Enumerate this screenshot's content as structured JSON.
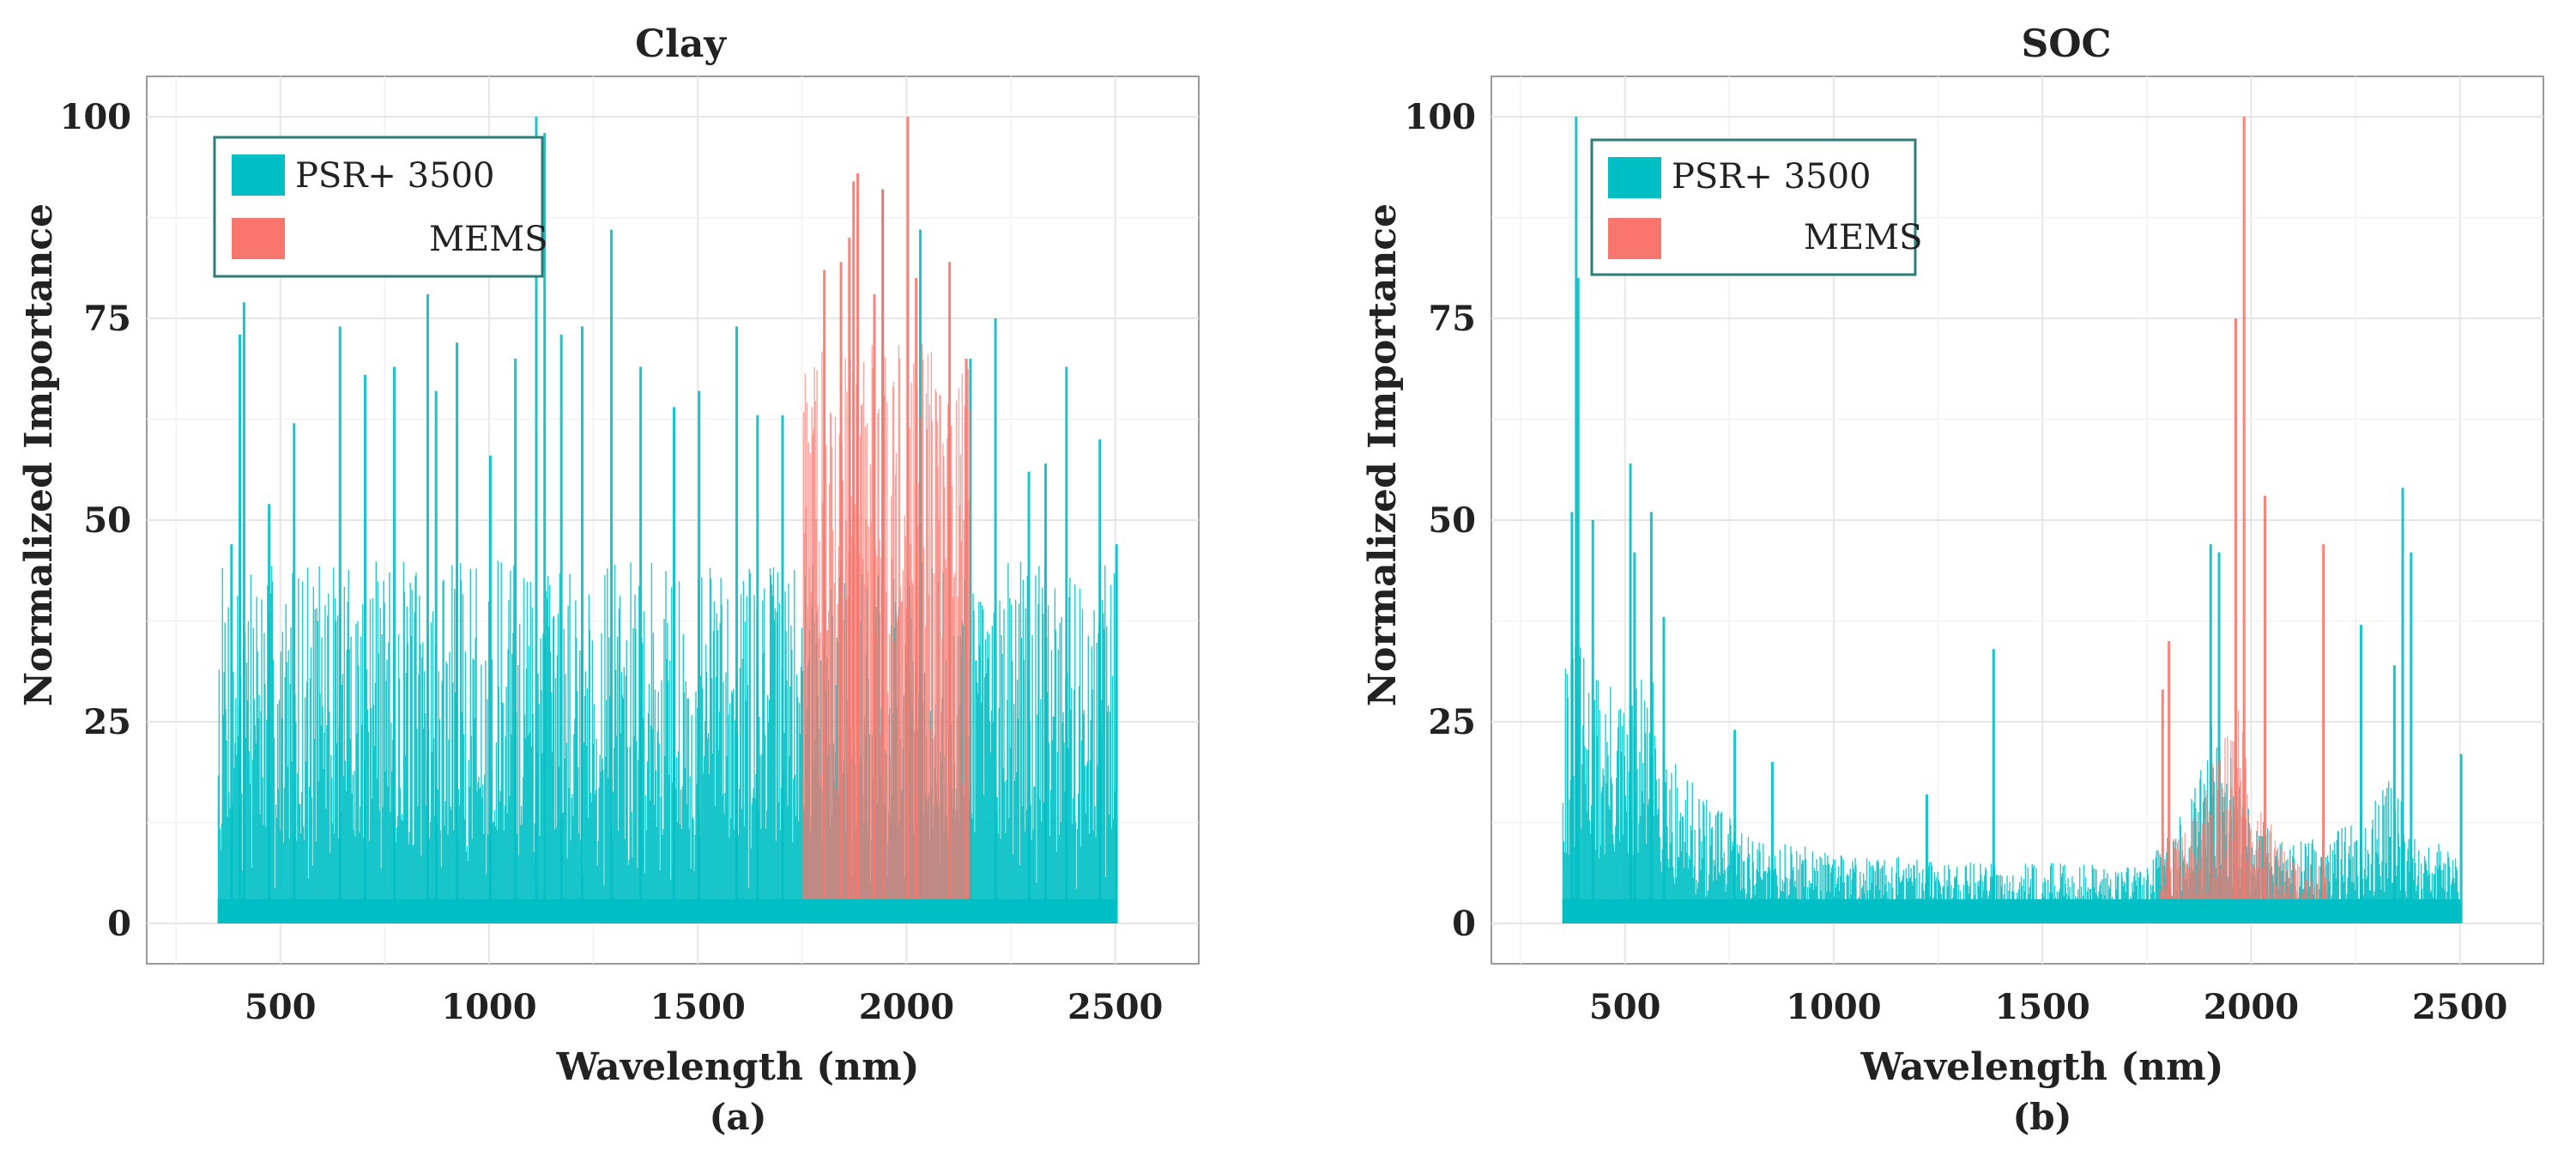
{
  "chart_data": [
    {
      "type": "bar",
      "title": "Clay",
      "panel_label": "(a)",
      "xlabel": "Wavelength (nm)",
      "ylabel": "Normalized Importance",
      "xlim": [
        180,
        2700
      ],
      "ylim": [
        -5,
        105
      ],
      "xticks": [
        500,
        1000,
        1500,
        2000,
        2500
      ],
      "yticks": [
        0,
        25,
        50,
        75,
        100
      ],
      "grid": true,
      "legend": {
        "position": "top-left",
        "entries": [
          "PSR+ 3500",
          "MEMS"
        ]
      },
      "series": [
        {
          "name": "PSR+ 3500",
          "color": "#00BFC4",
          "x_range": [
            350,
            2500
          ],
          "noise_low": 10,
          "noise_high": 45,
          "peaks": [
            {
              "x": 380,
              "y": 47
            },
            {
              "x": 400,
              "y": 73
            },
            {
              "x": 410,
              "y": 77
            },
            {
              "x": 470,
              "y": 52
            },
            {
              "x": 530,
              "y": 62
            },
            {
              "x": 640,
              "y": 74
            },
            {
              "x": 700,
              "y": 68
            },
            {
              "x": 770,
              "y": 69
            },
            {
              "x": 850,
              "y": 78
            },
            {
              "x": 870,
              "y": 66
            },
            {
              "x": 920,
              "y": 72
            },
            {
              "x": 1000,
              "y": 58
            },
            {
              "x": 1060,
              "y": 70
            },
            {
              "x": 1110,
              "y": 100
            },
            {
              "x": 1130,
              "y": 98
            },
            {
              "x": 1170,
              "y": 73
            },
            {
              "x": 1220,
              "y": 74
            },
            {
              "x": 1290,
              "y": 86
            },
            {
              "x": 1360,
              "y": 69
            },
            {
              "x": 1440,
              "y": 64
            },
            {
              "x": 1500,
              "y": 66
            },
            {
              "x": 1590,
              "y": 74
            },
            {
              "x": 1640,
              "y": 63
            },
            {
              "x": 1700,
              "y": 63
            },
            {
              "x": 1940,
              "y": 91
            },
            {
              "x": 2030,
              "y": 86
            },
            {
              "x": 2150,
              "y": 70
            },
            {
              "x": 2210,
              "y": 75
            },
            {
              "x": 2290,
              "y": 56
            },
            {
              "x": 2330,
              "y": 57
            },
            {
              "x": 2380,
              "y": 69
            },
            {
              "x": 2460,
              "y": 60
            },
            {
              "x": 2500,
              "y": 47
            }
          ]
        },
        {
          "name": "MEMS",
          "color": "#F8766D",
          "x_range": [
            1750,
            2150
          ],
          "noise_low": 35,
          "noise_high": 72,
          "peaks": [
            {
              "x": 1800,
              "y": 81
            },
            {
              "x": 1840,
              "y": 82
            },
            {
              "x": 1860,
              "y": 85
            },
            {
              "x": 1870,
              "y": 92
            },
            {
              "x": 1880,
              "y": 93
            },
            {
              "x": 1920,
              "y": 78
            },
            {
              "x": 1940,
              "y": 91
            },
            {
              "x": 2000,
              "y": 100
            },
            {
              "x": 2020,
              "y": 80
            },
            {
              "x": 2100,
              "y": 82
            },
            {
              "x": 2140,
              "y": 70
            }
          ]
        }
      ]
    },
    {
      "type": "bar",
      "title": "SOC",
      "panel_label": "(b)",
      "xlabel": "Wavelength (nm)",
      "ylabel": "Normalized Importance",
      "xlim": [
        180,
        2700
      ],
      "ylim": [
        -5,
        105
      ],
      "xticks": [
        500,
        1000,
        1500,
        2000,
        2500
      ],
      "yticks": [
        0,
        25,
        50,
        75,
        100
      ],
      "grid": true,
      "legend": {
        "position": "top-left",
        "entries": [
          "PSR+ 3500",
          "MEMS"
        ]
      },
      "series": [
        {
          "name": "PSR+ 3500",
          "color": "#00BFC4",
          "x_range": [
            350,
            2500
          ],
          "envelope": [
            {
              "x": 350,
              "y": 30
            },
            {
              "x": 420,
              "y": 26
            },
            {
              "x": 500,
              "y": 22
            },
            {
              "x": 560,
              "y": 26
            },
            {
              "x": 620,
              "y": 16
            },
            {
              "x": 700,
              "y": 12
            },
            {
              "x": 800,
              "y": 9
            },
            {
              "x": 1000,
              "y": 7
            },
            {
              "x": 1400,
              "y": 6
            },
            {
              "x": 1750,
              "y": 6
            },
            {
              "x": 1850,
              "y": 12
            },
            {
              "x": 1920,
              "y": 22
            },
            {
              "x": 1980,
              "y": 12
            },
            {
              "x": 2100,
              "y": 8
            },
            {
              "x": 2250,
              "y": 10
            },
            {
              "x": 2340,
              "y": 16
            },
            {
              "x": 2400,
              "y": 8
            },
            {
              "x": 2500,
              "y": 8
            }
          ],
          "peaks": [
            {
              "x": 370,
              "y": 51
            },
            {
              "x": 380,
              "y": 100
            },
            {
              "x": 385,
              "y": 80
            },
            {
              "x": 420,
              "y": 50
            },
            {
              "x": 510,
              "y": 57
            },
            {
              "x": 520,
              "y": 46
            },
            {
              "x": 560,
              "y": 51
            },
            {
              "x": 590,
              "y": 38
            },
            {
              "x": 760,
              "y": 24
            },
            {
              "x": 850,
              "y": 20
            },
            {
              "x": 1220,
              "y": 16
            },
            {
              "x": 1380,
              "y": 34
            },
            {
              "x": 1900,
              "y": 47
            },
            {
              "x": 1920,
              "y": 46
            },
            {
              "x": 2260,
              "y": 37
            },
            {
              "x": 2340,
              "y": 32
            },
            {
              "x": 2360,
              "y": 54
            },
            {
              "x": 2380,
              "y": 46
            },
            {
              "x": 2500,
              "y": 21
            }
          ]
        },
        {
          "name": "MEMS",
          "color": "#F8766D",
          "x_range": [
            1780,
            2180
          ],
          "envelope": [
            {
              "x": 1780,
              "y": 8
            },
            {
              "x": 1850,
              "y": 10
            },
            {
              "x": 1920,
              "y": 18
            },
            {
              "x": 1970,
              "y": 22
            },
            {
              "x": 2000,
              "y": 14
            },
            {
              "x": 2100,
              "y": 6
            },
            {
              "x": 2180,
              "y": 6
            }
          ],
          "peaks": [
            {
              "x": 1785,
              "y": 29
            },
            {
              "x": 1800,
              "y": 35
            },
            {
              "x": 1960,
              "y": 75
            },
            {
              "x": 1980,
              "y": 100
            },
            {
              "x": 2030,
              "y": 53
            },
            {
              "x": 2170,
              "y": 47
            }
          ]
        }
      ]
    }
  ]
}
